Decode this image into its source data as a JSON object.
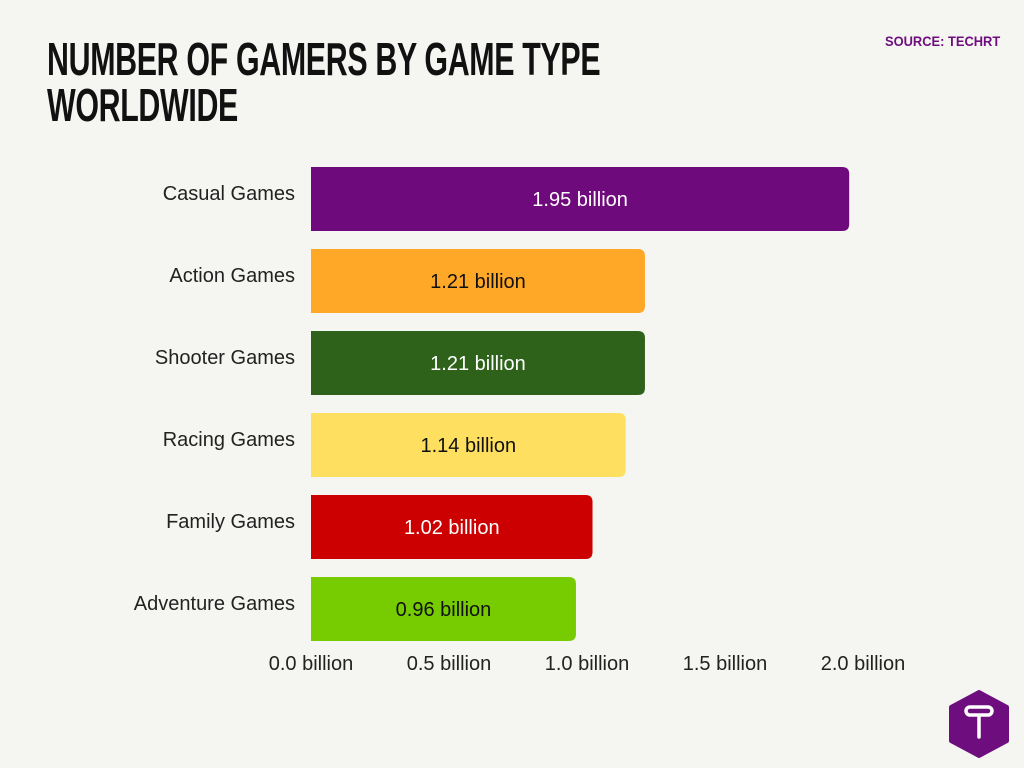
{
  "title_lines": [
    "NUMBER OF GAMERS BY GAME TYPE",
    "WORLDWIDE"
  ],
  "source": "SOURCE: TECHRT",
  "logo": {
    "name": "techrt-logo",
    "letter": "T",
    "color": "#6e0e7e"
  },
  "chart_data": {
    "type": "bar",
    "orientation": "horizontal",
    "title": "NUMBER OF GAMERS BY GAME TYPE WORLDWIDE",
    "categories": [
      "Casual Games",
      "Action Games",
      "Shooter Games",
      "Racing Games",
      "Family Games",
      "Adventure Games"
    ],
    "values": [
      1.95,
      1.21,
      1.21,
      1.14,
      1.02,
      0.96
    ],
    "data_labels": [
      "1.95 billion",
      "1.21 billion",
      "1.21 billion",
      "1.14 billion",
      "1.02 billion",
      "0.96 billion"
    ],
    "colors": [
      "#6e0a7c",
      "#ffa726",
      "#2e621a",
      "#ffdf5f",
      "#cc0000",
      "#76cc00"
    ],
    "label_colors": [
      "#ffffff",
      "#111111",
      "#ffffff",
      "#111111",
      "#ffffff",
      "#111111"
    ],
    "xticks": [
      0,
      0.5,
      1.0,
      1.5,
      2.0
    ],
    "xtick_labels": [
      "0.0 billion",
      "0.5 billion",
      "1.0 billion",
      "1.5 billion",
      "2.0 billion"
    ],
    "xlim": [
      0,
      2.0
    ],
    "unit": "billion",
    "grid": false,
    "legend": "none"
  }
}
